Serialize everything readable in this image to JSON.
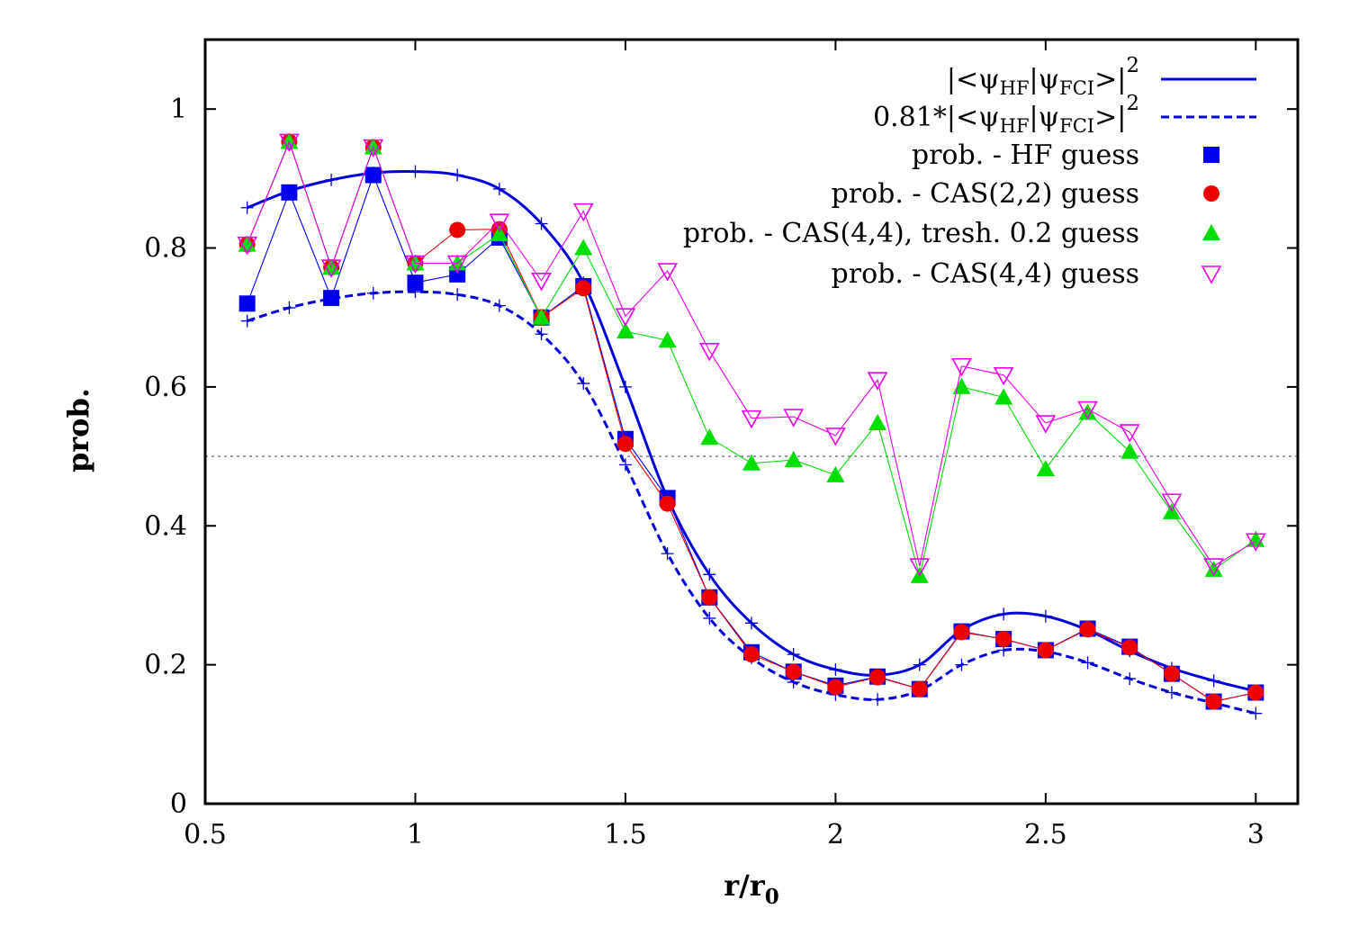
{
  "chart_data": {
    "type": "line",
    "title": "",
    "xlabel": "r/r",
    "xlabel_subscript": "0",
    "ylabel": "prob.",
    "xlim": [
      0.5,
      3.1
    ],
    "ylim": [
      0,
      1.1
    ],
    "xticks": [
      0.5,
      1,
      1.5,
      2,
      2.5,
      3
    ],
    "xtick_labels": [
      "0.5",
      "1",
      "1.5",
      "2",
      "2.5",
      "3"
    ],
    "yticks": [
      0,
      0.2,
      0.4,
      0.6,
      0.8,
      1
    ],
    "ytick_labels": [
      "0",
      "0.2",
      "0.4",
      "0.6",
      "0.8",
      "1"
    ],
    "grid": false,
    "legend_position": "top-right",
    "reference_line": {
      "y": 0.5,
      "style": "dotted",
      "color": "#888888"
    },
    "series": [
      {
        "name": "|<ψHF|ψFCI>|2",
        "legend_parts": [
          "|<ψ",
          "HF",
          "|ψ",
          "FCI",
          ">|",
          "2"
        ],
        "style": "solid-smooth",
        "color": "#0000dd",
        "x": [
          0.6,
          0.7,
          0.8,
          0.9,
          1.0,
          1.1,
          1.2,
          1.3,
          1.4,
          1.5,
          1.6,
          1.7,
          1.8,
          1.9,
          2.0,
          2.1,
          2.2,
          2.3,
          2.4,
          2.5,
          2.6,
          2.7,
          2.8,
          2.9,
          3.0
        ],
        "values": [
          0.858,
          0.882,
          0.898,
          0.908,
          0.91,
          0.905,
          0.885,
          0.835,
          0.75,
          0.6,
          0.44,
          0.33,
          0.26,
          0.215,
          0.193,
          0.185,
          0.2,
          0.25,
          0.273,
          0.27,
          0.25,
          0.22,
          0.195,
          0.177,
          0.162
        ]
      },
      {
        "name": "0.81*|<ψHF|ψFCI>|2",
        "legend_parts": [
          "0.81*|<ψ",
          "HF",
          "|ψ",
          "FCI",
          ">|",
          "2"
        ],
        "style": "dashed-smooth",
        "color": "#0000dd",
        "x": [
          0.6,
          0.7,
          0.8,
          0.9,
          1.0,
          1.1,
          1.2,
          1.3,
          1.4,
          1.5,
          1.6,
          1.7,
          1.8,
          1.9,
          2.0,
          2.1,
          2.2,
          2.3,
          2.4,
          2.5,
          2.6,
          2.7,
          2.8,
          2.9,
          3.0
        ],
        "values": [
          0.695,
          0.714,
          0.727,
          0.735,
          0.737,
          0.733,
          0.717,
          0.676,
          0.605,
          0.488,
          0.36,
          0.267,
          0.21,
          0.175,
          0.157,
          0.15,
          0.163,
          0.2,
          0.221,
          0.219,
          0.203,
          0.18,
          0.16,
          0.145,
          0.13
        ]
      },
      {
        "name": "prob. - HF guess",
        "marker": "square",
        "color": "#0000ee",
        "x": [
          0.6,
          0.7,
          0.8,
          0.9,
          1.0,
          1.1,
          1.2,
          1.3,
          1.4,
          1.5,
          1.6,
          1.7,
          1.8,
          1.9,
          2.0,
          2.1,
          2.2,
          2.3,
          2.4,
          2.5,
          2.6,
          2.7,
          2.8,
          2.9,
          3.0
        ],
        "values": [
          0.72,
          0.88,
          0.728,
          0.905,
          0.75,
          0.762,
          0.815,
          0.7,
          0.745,
          0.525,
          0.44,
          0.297,
          0.218,
          0.19,
          0.17,
          0.183,
          0.165,
          0.248,
          0.237,
          0.221,
          0.252,
          0.226,
          0.187,
          0.147,
          0.16
        ]
      },
      {
        "name": "prob. - CAS(2,2) guess",
        "marker": "circle",
        "color": "#ee0000",
        "x": [
          0.6,
          0.7,
          0.8,
          0.9,
          1.0,
          1.1,
          1.2,
          1.3,
          1.4,
          1.5,
          1.6,
          1.7,
          1.8,
          1.9,
          2.0,
          2.1,
          2.2,
          2.3,
          2.4,
          2.5,
          2.6,
          2.7,
          2.8,
          2.9,
          3.0
        ],
        "values": [
          0.805,
          0.953,
          0.772,
          0.945,
          0.778,
          0.826,
          0.827,
          0.7,
          0.742,
          0.518,
          0.432,
          0.297,
          0.215,
          0.19,
          0.168,
          0.182,
          0.165,
          0.247,
          0.237,
          0.221,
          0.251,
          0.225,
          0.187,
          0.147,
          0.16
        ]
      },
      {
        "name": "prob. - CAS(4,4), tresh. 0.2 guess",
        "marker": "triangle-up",
        "color": "#00dd00",
        "x": [
          0.6,
          0.7,
          0.8,
          0.9,
          1.0,
          1.1,
          1.2,
          1.3,
          1.4,
          1.5,
          1.6,
          1.7,
          1.8,
          1.9,
          2.0,
          2.1,
          2.2,
          2.3,
          2.4,
          2.5,
          2.6,
          2.7,
          2.8,
          2.9,
          3.0
        ],
        "values": [
          0.805,
          0.953,
          0.772,
          0.945,
          0.778,
          0.778,
          0.82,
          0.7,
          0.8,
          0.68,
          0.667,
          0.527,
          0.49,
          0.495,
          0.473,
          0.548,
          0.328,
          0.6,
          0.585,
          0.482,
          0.563,
          0.507,
          0.42,
          0.337,
          0.38
        ]
      },
      {
        "name": "prob. - CAS(4,4) guess",
        "marker": "triangle-down-open",
        "color": "#ee00ee",
        "x": [
          0.6,
          0.7,
          0.8,
          0.9,
          1.0,
          1.1,
          1.2,
          1.3,
          1.4,
          1.5,
          1.6,
          1.7,
          1.8,
          1.9,
          2.0,
          2.1,
          2.2,
          2.3,
          2.4,
          2.5,
          2.6,
          2.7,
          2.8,
          2.9,
          3.0
        ],
        "values": [
          0.805,
          0.953,
          0.772,
          0.945,
          0.778,
          0.778,
          0.838,
          0.753,
          0.853,
          0.702,
          0.767,
          0.652,
          0.555,
          0.557,
          0.53,
          0.61,
          0.342,
          0.63,
          0.617,
          0.548,
          0.568,
          0.535,
          0.435,
          0.342,
          0.378
        ]
      }
    ]
  }
}
